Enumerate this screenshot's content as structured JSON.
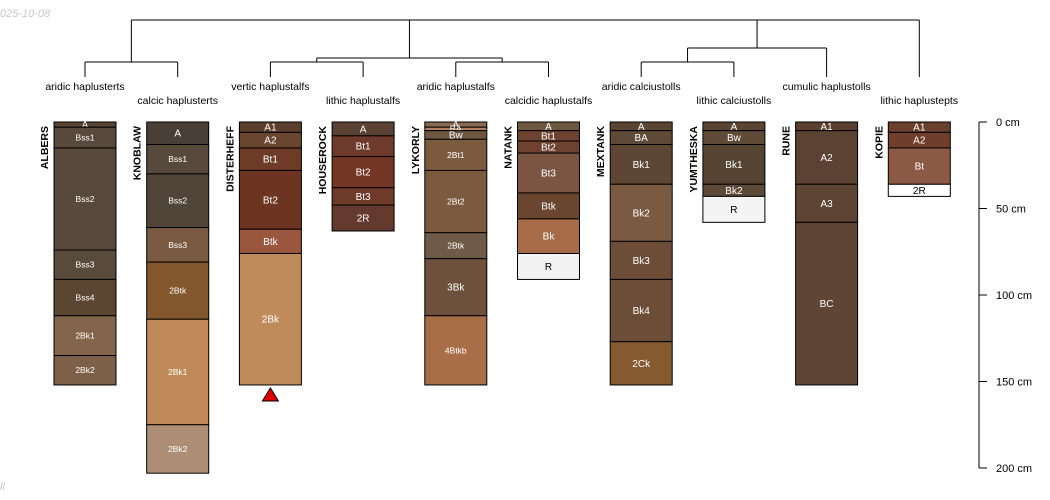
{
  "figure": {
    "date_stamp": "025-10-08",
    "corner_mark": "ll",
    "depth_axis": {
      "unit": "cm",
      "max": 200,
      "ticks": [
        {
          "value": 0,
          "label": "0 cm"
        },
        {
          "value": 50,
          "label": "50 cm"
        },
        {
          "value": 100,
          "label": "100 cm"
        },
        {
          "value": 150,
          "label": "150 cm"
        },
        {
          "value": 200,
          "label": "200 cm"
        }
      ]
    },
    "dendrogram": {
      "description": "Hierarchical clustering of taxonomic subgroups",
      "groups": [
        "aridic haplusterts",
        "calcic haplusterts",
        "vertic haplustalfs",
        "lithic haplustalfs",
        "aridic haplustalfs",
        "calcidic haplustalfs",
        "aridic calciustolls",
        "lithic calciustolls",
        "cumulic haplustolls",
        "lithic haplustepts"
      ]
    },
    "profiles": [
      {
        "name": "ALBERS",
        "subgroup": "aridic haplusterts",
        "bottom_marker": "",
        "horizons": [
          {
            "name": "A",
            "top": 0,
            "bottom": 3,
            "color": "#5a4434"
          },
          {
            "name": "Bss1",
            "top": 3,
            "bottom": 15,
            "color": "#574a3c"
          },
          {
            "name": "Bss2",
            "top": 15,
            "bottom": 74,
            "color": "#574a3c"
          },
          {
            "name": "Bss3",
            "top": 74,
            "bottom": 91,
            "color": "#594b3c"
          },
          {
            "name": "Bss4",
            "top": 91,
            "bottom": 112,
            "color": "#5b4632"
          },
          {
            "name": "2Bk1",
            "top": 112,
            "bottom": 135,
            "color": "#82654b"
          },
          {
            "name": "2Bk2",
            "top": 135,
            "bottom": 152,
            "color": "#7c6048"
          }
        ]
      },
      {
        "name": "KNOBLAW",
        "subgroup": "calcic haplusterts",
        "bottom_marker": "",
        "horizons": [
          {
            "name": "A",
            "top": 0,
            "bottom": 13,
            "color": "#4a3f36"
          },
          {
            "name": "Bss1",
            "top": 13,
            "bottom": 30,
            "color": "#574a3c"
          },
          {
            "name": "Bss2",
            "top": 30,
            "bottom": 61,
            "color": "#504538"
          },
          {
            "name": "Bss3",
            "top": 61,
            "bottom": 81,
            "color": "#7a5a40"
          },
          {
            "name": "2Btk",
            "top": 81,
            "bottom": 114,
            "color": "#84582e"
          },
          {
            "name": "2Bk1",
            "top": 114,
            "bottom": 175,
            "color": "#c08a58"
          },
          {
            "name": "2Bk2",
            "top": 175,
            "bottom": 203,
            "color": "#ad8e74"
          }
        ]
      },
      {
        "name": "DISTERHEFF",
        "subgroup": "vertic haplustalfs",
        "bottom_marker": "triangle",
        "horizons": [
          {
            "name": "A1",
            "top": 0,
            "bottom": 6,
            "color": "#5c3e2c"
          },
          {
            "name": "A2",
            "top": 6,
            "bottom": 15,
            "color": "#6a4630"
          },
          {
            "name": "Bt1",
            "top": 15,
            "bottom": 28,
            "color": "#6e3b26"
          },
          {
            "name": "Bt2",
            "top": 28,
            "bottom": 62,
            "color": "#6e3422"
          },
          {
            "name": "Btk",
            "top": 62,
            "bottom": 76,
            "color": "#9b563e"
          },
          {
            "name": "2Bk",
            "top": 76,
            "bottom": 152,
            "color": "#c08b5a"
          }
        ]
      },
      {
        "name": "HOUSEROCK",
        "subgroup": "lithic haplustalfs",
        "bottom_marker": "",
        "horizons": [
          {
            "name": "A",
            "top": 0,
            "bottom": 8,
            "color": "#5b4234"
          },
          {
            "name": "Bt1",
            "top": 8,
            "bottom": 20,
            "color": "#6e3a2b"
          },
          {
            "name": "Bt2",
            "top": 20,
            "bottom": 38,
            "color": "#733524"
          },
          {
            "name": "Bt3",
            "top": 38,
            "bottom": 48,
            "color": "#6e3a2a"
          },
          {
            "name": "2R",
            "top": 48,
            "bottom": 63,
            "color": "#633a2d"
          }
        ]
      },
      {
        "name": "LYKORLY",
        "subgroup": "aridic haplustalfs",
        "bottom_marker": "",
        "horizons": [
          {
            "name": "A",
            "top": 0,
            "bottom": 3,
            "color": "#8a6a50"
          },
          {
            "name": "BA",
            "top": 3,
            "bottom": 5,
            "color": "#b08060"
          },
          {
            "name": "Bw",
            "top": 5,
            "bottom": 10,
            "color": "#6f5640"
          },
          {
            "name": "2Bt1",
            "top": 10,
            "bottom": 28,
            "color": "#7c5a3e"
          },
          {
            "name": "2Bt2",
            "top": 28,
            "bottom": 64,
            "color": "#7c5a3e"
          },
          {
            "name": "2Btk",
            "top": 64,
            "bottom": 79,
            "color": "#6e5a46"
          },
          {
            "name": "3Bk",
            "top": 79,
            "bottom": 112,
            "color": "#6e513c"
          },
          {
            "name": "4Btkb",
            "top": 112,
            "bottom": 152,
            "color": "#a86e48"
          }
        ]
      },
      {
        "name": "NATANK",
        "subgroup": "calcidic haplustalfs",
        "bottom_marker": "",
        "horizons": [
          {
            "name": "A",
            "top": 0,
            "bottom": 5,
            "color": "#6e5840"
          },
          {
            "name": "Bt1",
            "top": 5,
            "bottom": 11,
            "color": "#6e4230"
          },
          {
            "name": "Bt2",
            "top": 11,
            "bottom": 18,
            "color": "#6e4230"
          },
          {
            "name": "Bt3",
            "top": 18,
            "bottom": 41,
            "color": "#7c5442"
          },
          {
            "name": "Btk",
            "top": 41,
            "bottom": 56,
            "color": "#6a4630"
          },
          {
            "name": "Bk",
            "top": 56,
            "bottom": 76,
            "color": "#a86c48"
          },
          {
            "name": "R",
            "top": 76,
            "bottom": 91,
            "color": "#f2f2f2"
          }
        ]
      },
      {
        "name": "MEXTANK",
        "subgroup": "aridic calciustolls",
        "bottom_marker": "",
        "horizons": [
          {
            "name": "A",
            "top": 0,
            "bottom": 5,
            "color": "#5a4434"
          },
          {
            "name": "BA",
            "top": 5,
            "bottom": 13,
            "color": "#5f4a38"
          },
          {
            "name": "Bk1",
            "top": 13,
            "bottom": 36,
            "color": "#5d4634"
          },
          {
            "name": "Bk2",
            "top": 36,
            "bottom": 69,
            "color": "#7a5b42"
          },
          {
            "name": "Bk3",
            "top": 69,
            "bottom": 91,
            "color": "#6c4e38"
          },
          {
            "name": "Bk4",
            "top": 91,
            "bottom": 127,
            "color": "#6c4e38"
          },
          {
            "name": "2Ck",
            "top": 127,
            "bottom": 152,
            "color": "#855a30"
          }
        ]
      },
      {
        "name": "YUMTHESKA",
        "subgroup": "lithic calciustolls",
        "bottom_marker": "",
        "horizons": [
          {
            "name": "A",
            "top": 0,
            "bottom": 5,
            "color": "#5a4434"
          },
          {
            "name": "Bw",
            "top": 5,
            "bottom": 13,
            "color": "#5f4b38"
          },
          {
            "name": "Bk1",
            "top": 13,
            "bottom": 36,
            "color": "#554431"
          },
          {
            "name": "Bk2",
            "top": 36,
            "bottom": 43,
            "color": "#5d4a38"
          },
          {
            "name": "R",
            "top": 43,
            "bottom": 58,
            "color": "#f4f4f4"
          }
        ]
      },
      {
        "name": "RUNE",
        "subgroup": "cumulic haplustolls",
        "bottom_marker": "",
        "horizons": [
          {
            "name": "A1",
            "top": 0,
            "bottom": 5,
            "color": "#5a3f30"
          },
          {
            "name": "A2",
            "top": 5,
            "bottom": 36,
            "color": "#5c4232"
          },
          {
            "name": "A3",
            "top": 36,
            "bottom": 58,
            "color": "#5e4433"
          },
          {
            "name": "BC",
            "top": 58,
            "bottom": 152,
            "color": "#5f4536"
          }
        ]
      },
      {
        "name": "KOPIE",
        "subgroup": "lithic haplustepts",
        "bottom_marker": "",
        "horizons": [
          {
            "name": "A1",
            "top": 0,
            "bottom": 6,
            "color": "#6a3f2c"
          },
          {
            "name": "A2",
            "top": 6,
            "bottom": 15,
            "color": "#6f3f2b"
          },
          {
            "name": "Bt",
            "top": 15,
            "bottom": 36,
            "color": "#8c5a44"
          },
          {
            "name": "2R",
            "top": 36,
            "bottom": 43,
            "color": "#ffffff"
          }
        ]
      }
    ]
  }
}
